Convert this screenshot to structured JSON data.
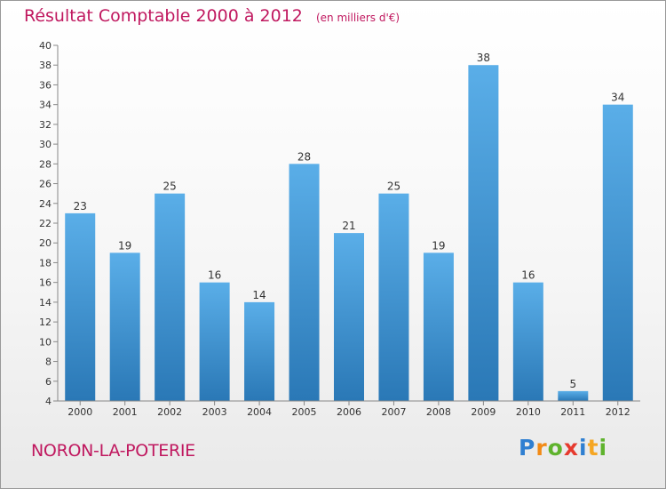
{
  "chart_data": {
    "type": "bar",
    "title": "Résultat Comptable 2000 à 2012",
    "subtitle": "(en milliers d'€)",
    "categories": [
      "2000",
      "2001",
      "2002",
      "2003",
      "2004",
      "2005",
      "2006",
      "2007",
      "2008",
      "2009",
      "2010",
      "2011",
      "2012"
    ],
    "values": [
      23,
      19,
      25,
      16,
      14,
      28,
      21,
      25,
      19,
      38,
      16,
      5,
      34
    ],
    "ylim": [
      4,
      40
    ],
    "yticks": [
      4,
      6,
      8,
      10,
      12,
      14,
      16,
      18,
      20,
      22,
      24,
      26,
      28,
      30,
      32,
      34,
      36,
      38,
      40
    ],
    "xlabel": "",
    "ylabel": "",
    "grid": false,
    "colors": {
      "bar_top": "#5aaee8",
      "bar_bottom": "#2a78b6",
      "title": "#c0185f"
    }
  },
  "footer": {
    "commune": "NORON-LA-POTERIE",
    "brand": "Proxiti",
    "brand_letters": [
      "P",
      "r",
      "o",
      "x",
      "i",
      "t",
      "i"
    ],
    "brand_colors": [
      "#2f7fd1",
      "#f28a16",
      "#5fb32d",
      "#e63a2e",
      "#2f7fd1",
      "#f5a623",
      "#5fb32d"
    ]
  }
}
